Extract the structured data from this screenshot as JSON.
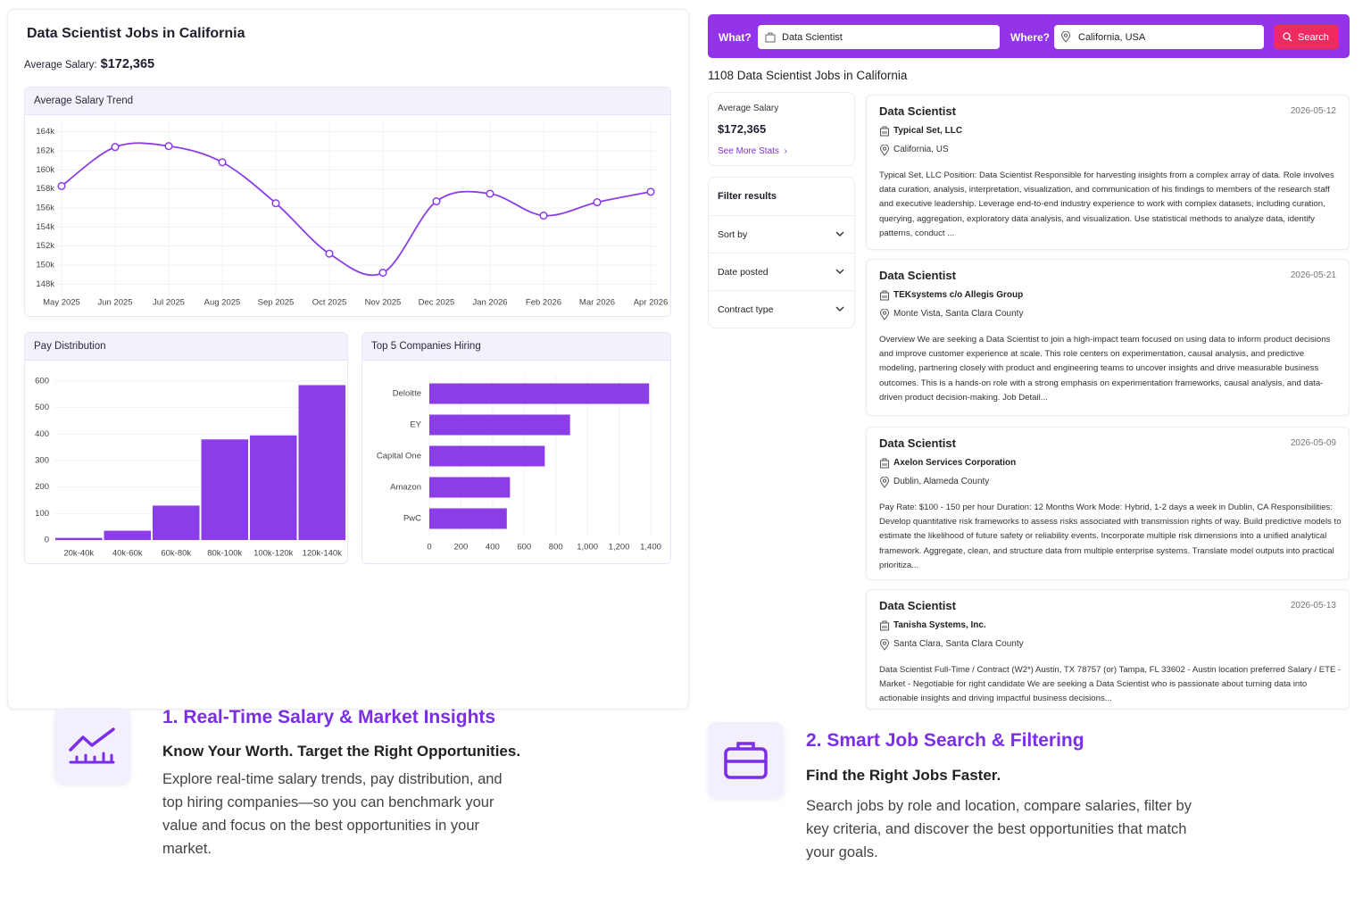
{
  "header": {
    "title": "Data Scientist Jobs in California",
    "salary_label": "Average Salary:",
    "salary_value": "$172,365"
  },
  "chart_data": [
    {
      "type": "line",
      "title": "Average Salary Trend",
      "color": "#8b3ee8",
      "grid": true,
      "categories": [
        "May 2025",
        "Jun 2025",
        "Jul 2025",
        "Aug 2025",
        "Sep 2025",
        "Oct 2025",
        "Nov 2025",
        "Dec 2025",
        "Jan 2026",
        "Feb 2026",
        "Mar 2026",
        "Apr 2026"
      ],
      "values": [
        158300,
        162400,
        162500,
        160800,
        156500,
        151200,
        149200,
        156700,
        157500,
        155200,
        156600,
        157700
      ],
      "ylim": [
        147000,
        165000
      ],
      "yticks": [
        {
          "value": 148000,
          "label": "148k"
        },
        {
          "value": 150000,
          "label": "150k"
        },
        {
          "value": 152000,
          "label": "152k"
        },
        {
          "value": 154000,
          "label": "154k"
        },
        {
          "value": 156000,
          "label": "156k"
        },
        {
          "value": 158000,
          "label": "158k"
        },
        {
          "value": 160000,
          "label": "160k"
        },
        {
          "value": 162000,
          "label": "162k"
        },
        {
          "value": 164000,
          "label": "164k"
        }
      ]
    },
    {
      "type": "bar",
      "title": "Pay Distribution",
      "color": "#8b3ee8",
      "grid": true,
      "categories": [
        "20k-40k",
        "40k-60k",
        "60k-80k",
        "80k-100k",
        "100k-120k",
        "120k-140k"
      ],
      "values": [
        8,
        35,
        130,
        380,
        395,
        585
      ],
      "ylim": [
        0,
        600
      ],
      "yticks": [
        0,
        100,
        200,
        300,
        400,
        500,
        600
      ]
    },
    {
      "type": "barh",
      "title": "Top 5 Companies Hiring",
      "color": "#8b3ee8",
      "grid": true,
      "categories": [
        "Deloitte",
        "EY",
        "Capital One",
        "Amazon",
        "PwC"
      ],
      "values": [
        1390,
        890,
        730,
        510,
        490
      ],
      "xlim": [
        0,
        1400
      ],
      "xticks": [
        0,
        200,
        400,
        600,
        800,
        {
          "value": 1000,
          "label": "1,000"
        },
        {
          "value": 1200,
          "label": "1,200"
        },
        {
          "value": 1400,
          "label": "1,400"
        }
      ]
    }
  ],
  "search": {
    "what_label": "What?",
    "what_value": "Data Scientist",
    "where_label": "Where?",
    "where_value": "California, USA",
    "button": "Search"
  },
  "results_count": "1108 Data Scientist Jobs in California",
  "stats": {
    "label": "Average Salary",
    "value": "$172,365",
    "link": "See More Stats"
  },
  "filters": {
    "title": "Filter results",
    "items": [
      "Sort by",
      "Date posted",
      "Contract type"
    ]
  },
  "jobs": [
    {
      "title": "Data Scientist",
      "date": "2026-05-12",
      "company": "Typical Set, LLC",
      "location": "California, US",
      "description": "Typical Set, LLC Position: Data Scientist Responsible for harvesting insights from a complex array of data. Role involves data curation, analysis, interpretation, visualization, and communication of his findings to members of the research staff and executive leadership. Leverage end-to-end industry experience to work with complex datasets, including curation, querying, aggregation, exploratory data analysis, and visualization. Use statistical methods to analyze data, identify patterns, conduct ..."
    },
    {
      "title": "Data Scientist",
      "date": "2026-05-21",
      "company": "TEKsystems c/o Allegis Group",
      "location": "Monte Vista, Santa Clara County",
      "description": "Overview We are seeking a Data Scientist to join a high-impact team focused on using data to inform product decisions and improve customer experience at scale. This role centers on experimentation, causal analysis, and predictive modeling, partnering closely with product and engineering teams to uncover insights and drive measurable business outcomes. This is a hands-on role with a strong emphasis on experimentation frameworks, causal analysis, and data-driven product decision-making. Job Detail..."
    },
    {
      "title": "Data Scientist",
      "date": "2026-05-09",
      "company": "Axelon Services Corporation",
      "location": "Dublin, Alameda County",
      "description": "Pay Rate: $100 - 150 per hour Duration: 12 Months Work Mode: Hybrid, 1-2 days a week in Dublin, CA Responsibilities: Develop quantitative risk frameworks to assess risks associated with transmission rights of way. Build predictive models to estimate the likelihood of future safety or reliability events. Incorporate multiple risk dimensions into a unified analytical framework. Aggregate, clean, and structure data from multiple enterprise systems. Translate model outputs into practical prioritiza..."
    },
    {
      "title": "Data Scientist",
      "date": "2026-05-13",
      "company": "Tanisha Systems, Inc.",
      "location": "Santa Clara, Santa Clara County",
      "description": "Data Scientist Full-Time / Contract (W2*) Austin, TX 78757 (or) Tampa, FL 33602 - Austin location preferred Salary / ETE - Market - Negotiable for right candidate We are seeking a Data Scientist who is passionate about turning data into actionable insights and driving impactful business decisions..."
    }
  ],
  "features": [
    {
      "title": "1. Real-Time Salary & Market Insights",
      "subtitle": "Know Your Worth. Target the Right Opportunities.",
      "body": "Explore real-time salary trends, pay distribution, and top hiring companies—so you can benchmark your value and focus on the best opportunities in your market."
    },
    {
      "title": "2. Smart Job Search & Filtering",
      "subtitle": "Find the Right Jobs Faster.",
      "body": "Search jobs by role and location, compare salaries, filter by key criteria, and discover the best opportunities that match your goals."
    }
  ]
}
